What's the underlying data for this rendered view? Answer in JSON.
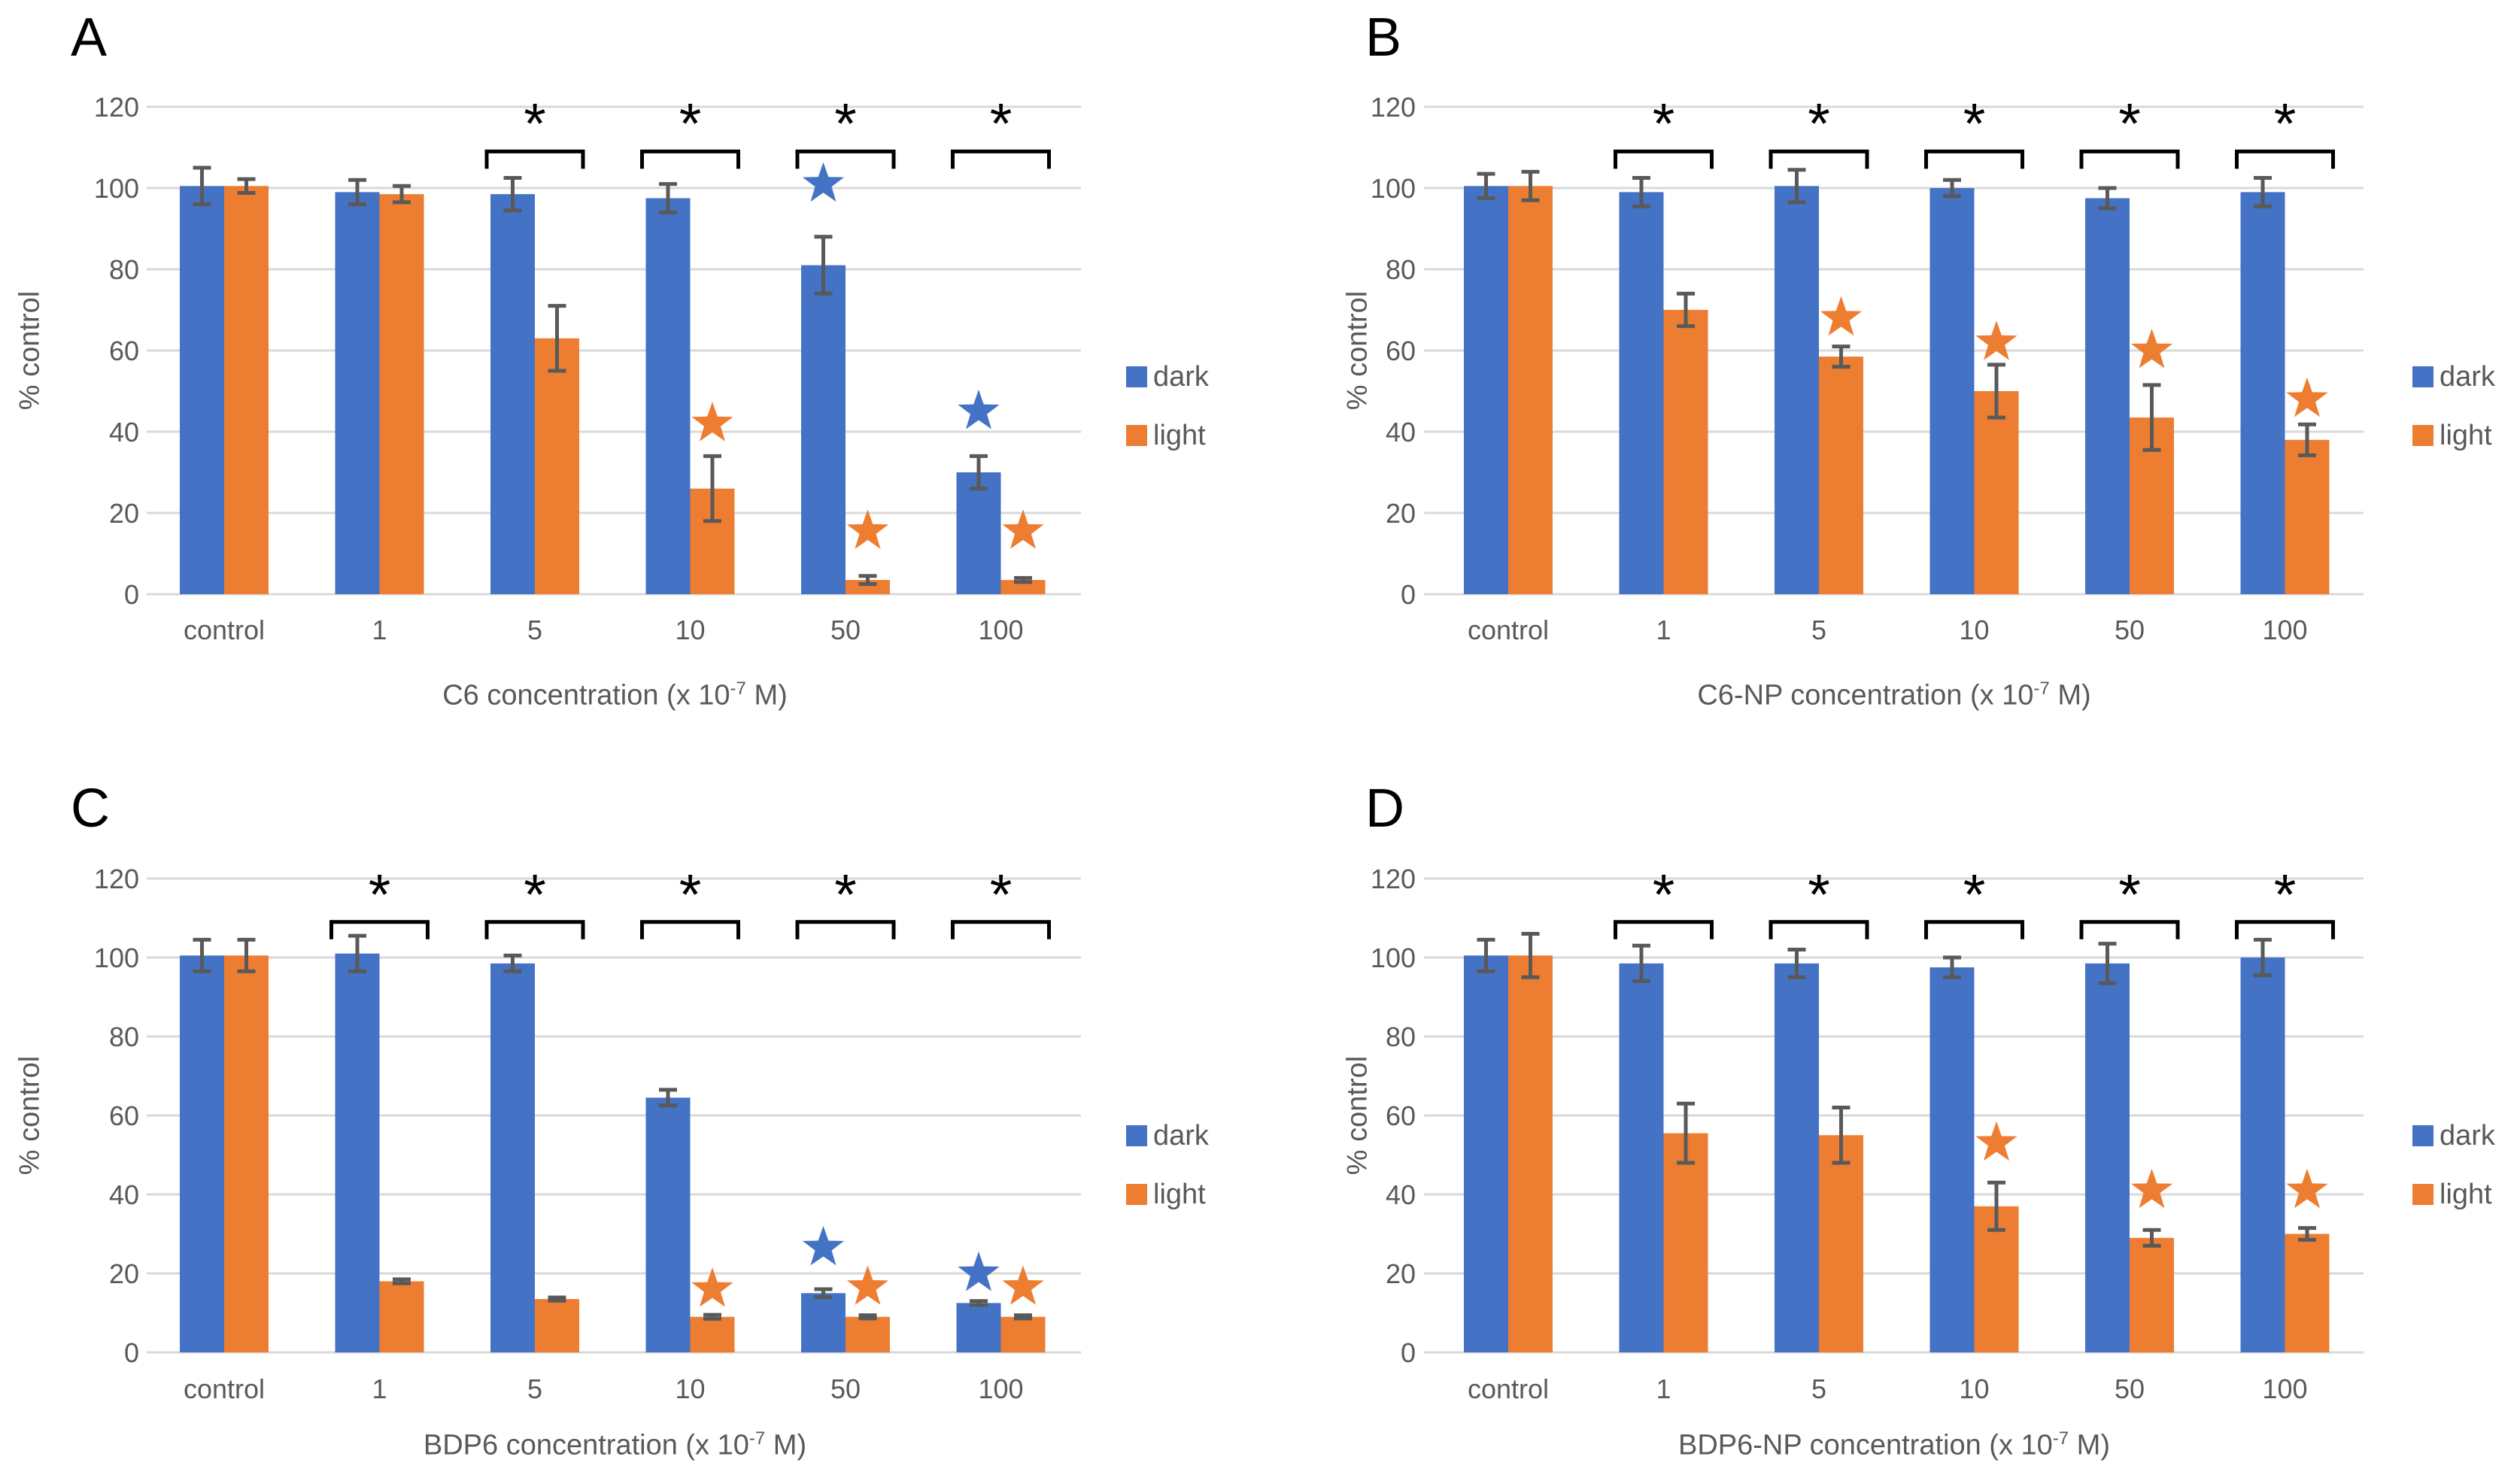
{
  "colors": {
    "dark": "#4472C4",
    "light": "#ED7D31",
    "grid": "#D9D9D9",
    "text": "#595959",
    "error": "#595959",
    "significance": "#000000",
    "background": "#FFFFFF"
  },
  "legend": {
    "dark_label": "dark",
    "light_label": "light"
  },
  "chart_data": [
    {
      "type": "bar",
      "panel_label": "A",
      "ylabel": "% control",
      "xlabel": "C6 concentration (x 10-7 M)",
      "xlabel_parts": {
        "prefix": "C6 concentration (x 10",
        "sup": "-7",
        "suffix": " M)"
      },
      "categories": [
        "control",
        "1",
        "5",
        "10",
        "50",
        "100"
      ],
      "ylim": [
        0,
        120
      ],
      "yticks": [
        0,
        20,
        40,
        60,
        80,
        100,
        120
      ],
      "grid": true,
      "legend_position": "right",
      "series": [
        {
          "name": "dark",
          "values": [
            100.5,
            99,
            98.5,
            97.5,
            81,
            30
          ],
          "errors": [
            4.5,
            3,
            4,
            3.5,
            7,
            4
          ]
        },
        {
          "name": "light",
          "values": [
            100.5,
            98.5,
            63,
            26,
            3.5,
            3.5
          ],
          "errors": [
            1.7,
            2,
            8,
            8,
            1,
            0.5
          ]
        }
      ],
      "sig_symbol": "*",
      "sig_brackets": [
        2,
        3,
        4,
        5
      ],
      "stars": [
        {
          "series": "light",
          "category": 3,
          "y": 42
        },
        {
          "series": "dark",
          "category": 4,
          "y": 101
        },
        {
          "series": "light",
          "category": 4,
          "y": 15.5
        },
        {
          "series": "dark",
          "category": 5,
          "y": 45
        },
        {
          "series": "light",
          "category": 5,
          "y": 15.5
        }
      ]
    },
    {
      "type": "bar",
      "panel_label": "B",
      "ylabel": "% control",
      "xlabel": "C6-NP concentration (x 10-7 M)",
      "xlabel_parts": {
        "prefix": "C6-NP concentration (x 10",
        "sup": "-7",
        "suffix": " M)"
      },
      "categories": [
        "control",
        "1",
        "5",
        "10",
        "50",
        "100"
      ],
      "ylim": [
        0,
        120
      ],
      "yticks": [
        0,
        20,
        40,
        60,
        80,
        100,
        120
      ],
      "grid": true,
      "legend_position": "right",
      "series": [
        {
          "name": "dark",
          "values": [
            100.5,
            99,
            100.5,
            100,
            97.5,
            99
          ],
          "errors": [
            3,
            3.5,
            4,
            2,
            2.5,
            3.5
          ]
        },
        {
          "name": "light",
          "values": [
            100.5,
            70,
            58.5,
            50,
            43.5,
            38
          ],
          "errors": [
            3.5,
            4,
            2.5,
            6.5,
            8,
            3.8
          ]
        }
      ],
      "sig_symbol": "*",
      "sig_brackets": [
        1,
        2,
        3,
        4,
        5
      ],
      "stars": [
        {
          "series": "light",
          "category": 2,
          "y": 68
        },
        {
          "series": "light",
          "category": 3,
          "y": 62
        },
        {
          "series": "light",
          "category": 4,
          "y": 60
        },
        {
          "series": "light",
          "category": 5,
          "y": 48
        }
      ]
    },
    {
      "type": "bar",
      "panel_label": "C",
      "ylabel": "% control",
      "xlabel": "BDP6 concentration (x 10-7 M)",
      "xlabel_parts": {
        "prefix": "BDP6 concentration (x 10",
        "sup": "-7",
        "suffix": " M)"
      },
      "categories": [
        "control",
        "1",
        "5",
        "10",
        "50",
        "100"
      ],
      "ylim": [
        0,
        120
      ],
      "yticks": [
        0,
        20,
        40,
        60,
        80,
        100,
        120
      ],
      "grid": true,
      "legend_position": "right",
      "series": [
        {
          "name": "dark",
          "values": [
            100.5,
            101,
            98.5,
            64.5,
            15,
            12.5
          ],
          "errors": [
            4,
            4.5,
            2,
            2,
            1,
            0.5
          ]
        },
        {
          "name": "light",
          "values": [
            100.5,
            18,
            13.5,
            9,
            9,
            9
          ],
          "errors": [
            4,
            0.5,
            0.4,
            0.5,
            0.4,
            0.4
          ]
        }
      ],
      "sig_symbol": "*",
      "sig_brackets": [
        1,
        2,
        3,
        4,
        5
      ],
      "stars": [
        {
          "series": "light",
          "category": 3,
          "y": 16
        },
        {
          "series": "dark",
          "category": 4,
          "y": 26.5
        },
        {
          "series": "light",
          "category": 4,
          "y": 16.5
        },
        {
          "series": "dark",
          "category": 5,
          "y": 20
        },
        {
          "series": "light",
          "category": 5,
          "y": 16.5
        }
      ]
    },
    {
      "type": "bar",
      "panel_label": "D",
      "ylabel": "% control",
      "xlabel": "BDP6-NP concentration (x 10-7 M)",
      "xlabel_parts": {
        "prefix": "BDP6-NP concentration (x 10",
        "sup": "-7",
        "suffix": " M)"
      },
      "categories": [
        "control",
        "1",
        "5",
        "10",
        "50",
        "100"
      ],
      "ylim": [
        0,
        120
      ],
      "yticks": [
        0,
        20,
        40,
        60,
        80,
        100,
        120
      ],
      "grid": true,
      "legend_position": "right",
      "series": [
        {
          "name": "dark",
          "values": [
            100.5,
            98.5,
            98.5,
            97.5,
            98.5,
            100
          ],
          "errors": [
            4,
            4.5,
            3.5,
            2.5,
            5,
            4.5
          ]
        },
        {
          "name": "light",
          "values": [
            100.5,
            55.5,
            55,
            37,
            29,
            30
          ],
          "errors": [
            5.5,
            7.5,
            7,
            6,
            2,
            1.5
          ]
        }
      ],
      "sig_symbol": "*",
      "sig_brackets": [
        1,
        2,
        3,
        4,
        5
      ],
      "stars": [
        {
          "series": "light",
          "category": 3,
          "y": 53
        },
        {
          "series": "light",
          "category": 4,
          "y": 41
        },
        {
          "series": "light",
          "category": 5,
          "y": 41
        }
      ]
    }
  ]
}
